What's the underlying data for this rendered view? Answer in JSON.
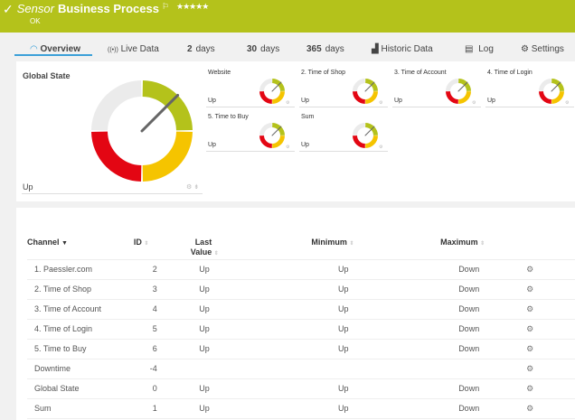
{
  "header": {
    "status_icon": "check-icon",
    "prefix": "Sensor",
    "name": "Business Process",
    "flag_icon": "flag-icon",
    "stars": "★★★★★",
    "status": "OK",
    "color": "#b4c21b"
  },
  "tabs": [
    {
      "label": "Overview",
      "icon": "gauge-icon",
      "active": true
    },
    {
      "label": "Live Data",
      "icon": "broadcast-icon"
    },
    {
      "num": "2",
      "label": "days"
    },
    {
      "num": "30",
      "label": "days"
    },
    {
      "num": "365",
      "label": "days"
    },
    {
      "label": "Historic Data",
      "icon": "chart-icon"
    },
    {
      "label": "Log",
      "icon": "log-icon"
    },
    {
      "label": "Settings",
      "icon": "gear-icon"
    }
  ],
  "global_state": {
    "title": "Global State",
    "value": "Up"
  },
  "gauge_colors": {
    "grey": "#ebebeb",
    "green": "#b4c21b",
    "yellow": "#f5c400",
    "red": "#e30613"
  },
  "tiles": [
    {
      "title": "Website",
      "value": "Up"
    },
    {
      "title": "2. Time of Shop",
      "value": "Up"
    },
    {
      "title": "3. Time of Account",
      "value": "Up"
    },
    {
      "title": "4. Time of Login",
      "value": "Up"
    },
    {
      "title": "5. Time to Buy",
      "value": "Up"
    },
    {
      "title": "Sum",
      "value": "Up"
    }
  ],
  "table": {
    "headers": {
      "channel": "Channel",
      "id": "ID",
      "last_value": "Last Value",
      "minimum": "Minimum",
      "maximum": "Maximum"
    },
    "rows": [
      {
        "channel": "1. Paessler.com",
        "id": "2",
        "last": "Up",
        "min": "Up",
        "max": "Down"
      },
      {
        "channel": "2. Time of Shop",
        "id": "3",
        "last": "Up",
        "min": "Up",
        "max": "Down"
      },
      {
        "channel": "3. Time of Account",
        "id": "4",
        "last": "Up",
        "min": "Up",
        "max": "Down"
      },
      {
        "channel": "4. Time of Login",
        "id": "5",
        "last": "Up",
        "min": "Up",
        "max": "Down"
      },
      {
        "channel": "5. Time to Buy",
        "id": "6",
        "last": "Up",
        "min": "Up",
        "max": "Down"
      },
      {
        "channel": "Downtime",
        "id": "-4",
        "last": "",
        "min": "",
        "max": ""
      },
      {
        "channel": "Global State",
        "id": "0",
        "last": "Up",
        "min": "Up",
        "max": "Down"
      },
      {
        "channel": "Sum",
        "id": "1",
        "last": "Up",
        "min": "Up",
        "max": "Down"
      }
    ]
  }
}
